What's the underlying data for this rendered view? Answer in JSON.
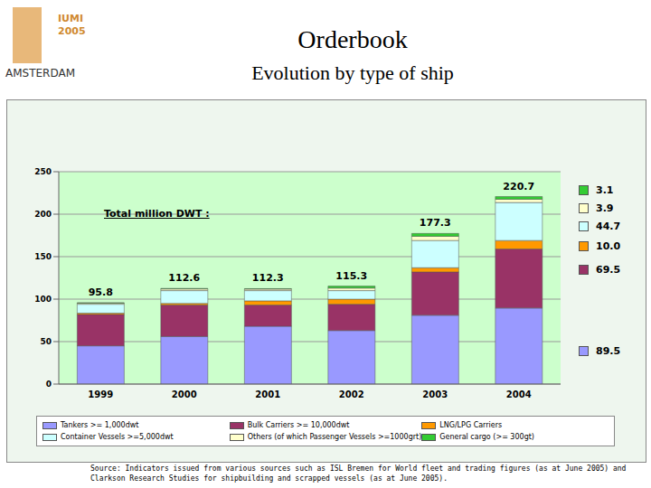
{
  "logo": {
    "texts": [
      "IUMI",
      "2005",
      "AMSTERDAM"
    ]
  },
  "header": {
    "title": "Orderbook",
    "subtitle": "Evolution by type of ship"
  },
  "chart_data": {
    "type": "bar",
    "stacked": true,
    "grid": true,
    "data_labels": true,
    "categories": [
      "1999",
      "2000",
      "2001",
      "2002",
      "2003",
      "2004"
    ],
    "ylim": [
      0,
      250
    ],
    "yticks": [
      0,
      50,
      100,
      150,
      200,
      250
    ],
    "totals_label": "Total million DWT :",
    "totals": [
      95.8,
      112.6,
      112.3,
      115.3,
      177.3,
      220.7
    ],
    "series": [
      {
        "name": "Tankers >= 1,000dwt",
        "color": "#9999ff",
        "values": [
          45,
          56,
          68,
          63,
          81,
          89.5
        ],
        "value_labels": [
          null,
          null,
          null,
          null,
          null,
          "89.5"
        ]
      },
      {
        "name": "Bulk Carriers >= 10,000dwt",
        "color": "#993366",
        "values": [
          37,
          37,
          25,
          31,
          51,
          69.5
        ],
        "value_labels": [
          null,
          null,
          null,
          null,
          null,
          "69.5"
        ]
      },
      {
        "name": "LNG/LPG Carriers",
        "color": "#ff9900",
        "values": [
          1.5,
          2,
          5,
          6,
          5,
          10
        ],
        "value_labels": [
          null,
          null,
          null,
          null,
          null,
          "10.0"
        ]
      },
      {
        "name": "Container Vessels >=5,000dwt",
        "color": "#ccffff",
        "values": [
          10.5,
          15,
          12,
          10,
          32,
          44.7
        ],
        "value_labels": [
          null,
          null,
          null,
          null,
          null,
          "44.7"
        ]
      },
      {
        "name": "Others (of which Passenger Vessels >=1000grt)",
        "color": "#ffffcc",
        "values": [
          1.3,
          2,
          1.8,
          3,
          5,
          3.9
        ],
        "value_labels": [
          null,
          null,
          null,
          null,
          null,
          "3.9"
        ]
      },
      {
        "name": "General cargo (>= 300gt)",
        "color": "#33cc33",
        "values": [
          0.5,
          0.6,
          0.5,
          2.3,
          3.3,
          3.1
        ],
        "value_labels": [
          null,
          null,
          null,
          null,
          null,
          "3.1"
        ]
      }
    ]
  },
  "source": "Source: Indicators issued from various sources such as ISL Bremen for World fleet and trading figures (as at June 2005) and Clarkson Research Studies for shipbuilding and scrapped vessels (as at June 2005)."
}
